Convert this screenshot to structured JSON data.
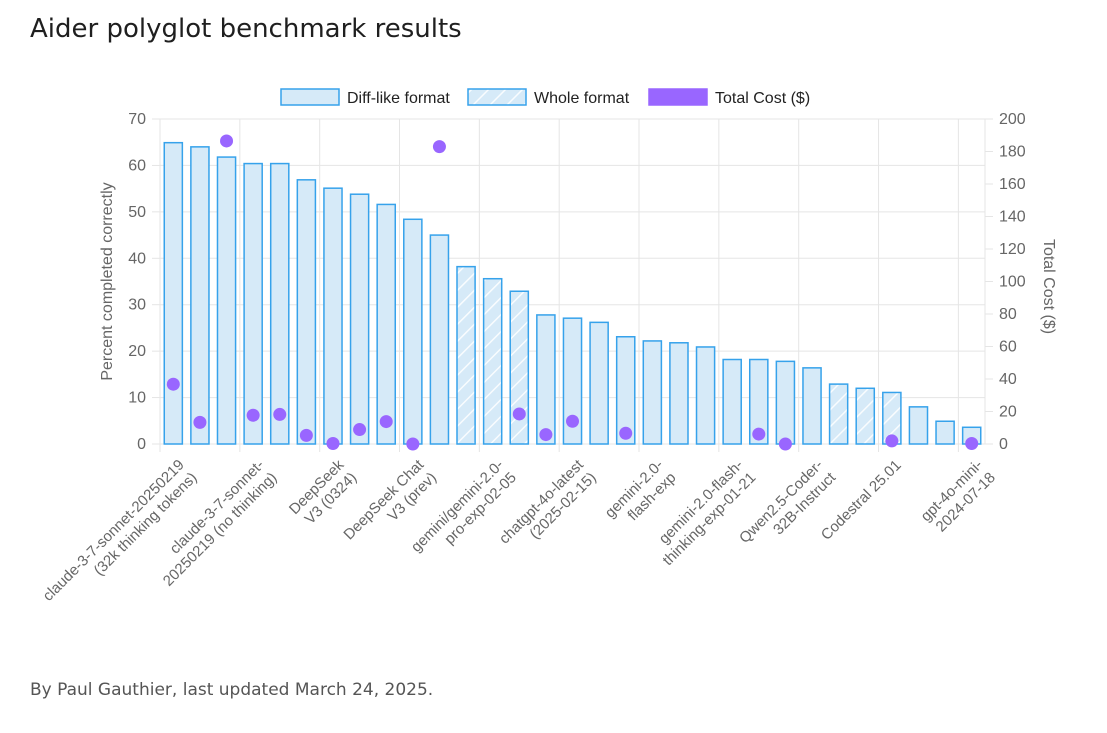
{
  "page": {
    "title": "Aider polyglot benchmark results",
    "byline": "By Paul Gauthier, last updated March 24, 2025."
  },
  "chart_data": {
    "type": "bar",
    "title": "",
    "legend": {
      "placement": "top-center",
      "items": [
        {
          "label": "Diff-like format",
          "kind": "bar"
        },
        {
          "label": "Whole format",
          "kind": "bar-hatched"
        },
        {
          "label": "Total Cost ($)",
          "kind": "point"
        }
      ]
    },
    "y_left": {
      "label": "Percent completed correctly",
      "min": 0,
      "max": 70,
      "step": 10
    },
    "y_right": {
      "label": "Total Cost ($)",
      "min": 0,
      "max": 200,
      "step": 20
    },
    "grid": true,
    "colors": {
      "bar_fill": "#d6eaf8",
      "bar_stroke": "#36a2eb",
      "cost_point": "#9966ff",
      "grid": "#e5e5e5"
    },
    "x_labels_shown": [
      {
        "index": 0,
        "lines": [
          "claude-3-7-sonnet-20250219",
          "(32k thinking tokens)"
        ]
      },
      {
        "index": 3,
        "lines": [
          "claude-3-7-sonnet-",
          "20250219 (no thinking)"
        ]
      },
      {
        "index": 6,
        "lines": [
          "DeepSeek",
          "V3 (0324)"
        ]
      },
      {
        "index": 9,
        "lines": [
          "DeepSeek Chat",
          "V3 (prev)"
        ]
      },
      {
        "index": 12,
        "lines": [
          "gemini/gemini-2.0-",
          "pro-exp-02-05"
        ]
      },
      {
        "index": 15,
        "lines": [
          "chatgpt-4o-latest",
          "(2025-02-15)"
        ]
      },
      {
        "index": 18,
        "lines": [
          "gemini-2.0-",
          "flash-exp"
        ]
      },
      {
        "index": 21,
        "lines": [
          "gemini-2.0-flash-",
          "thinking-exp-01-21"
        ]
      },
      {
        "index": 24,
        "lines": [
          "Qwen2.5-Coder-",
          "32B-Instruct"
        ]
      },
      {
        "index": 27,
        "lines": [
          "Codestral 25.01"
        ]
      },
      {
        "index": 30,
        "lines": [
          "gpt-4o-mini-",
          "2024-07-18"
        ]
      }
    ],
    "bars": [
      {
        "value": 64.9,
        "format": "diff",
        "cost": 36.8
      },
      {
        "value": 64.0,
        "format": "diff",
        "cost": 13.3
      },
      {
        "value": 61.8,
        "format": "diff",
        "cost": 186.5
      },
      {
        "value": 60.4,
        "format": "diff",
        "cost": 17.7
      },
      {
        "value": 60.4,
        "format": "diff",
        "cost": 18.2
      },
      {
        "value": 56.9,
        "format": "diff",
        "cost": 5.3
      },
      {
        "value": 55.1,
        "format": "diff",
        "cost": 0.3
      },
      {
        "value": 53.8,
        "format": "diff",
        "cost": 8.9
      },
      {
        "value": 51.6,
        "format": "diff",
        "cost": 13.8
      },
      {
        "value": 48.4,
        "format": "diff",
        "cost": 0.0
      },
      {
        "value": 45.0,
        "format": "diff",
        "cost": 183.0
      },
      {
        "value": 38.2,
        "format": "whole",
        "cost": null
      },
      {
        "value": 35.6,
        "format": "whole",
        "cost": null
      },
      {
        "value": 32.9,
        "format": "whole",
        "cost": 18.5
      },
      {
        "value": 27.8,
        "format": "diff",
        "cost": 5.8
      },
      {
        "value": 27.1,
        "format": "diff",
        "cost": 14.0
      },
      {
        "value": 26.2,
        "format": "diff",
        "cost": null
      },
      {
        "value": 23.1,
        "format": "diff",
        "cost": 6.6
      },
      {
        "value": 22.2,
        "format": "diff",
        "cost": null
      },
      {
        "value": 21.8,
        "format": "diff",
        "cost": null
      },
      {
        "value": 20.9,
        "format": "diff",
        "cost": null
      },
      {
        "value": 18.2,
        "format": "diff",
        "cost": null
      },
      {
        "value": 18.2,
        "format": "diff",
        "cost": 6.1
      },
      {
        "value": 17.8,
        "format": "diff",
        "cost": 0.0
      },
      {
        "value": 16.4,
        "format": "diff",
        "cost": null
      },
      {
        "value": 12.9,
        "format": "whole",
        "cost": null
      },
      {
        "value": 12.0,
        "format": "whole",
        "cost": null
      },
      {
        "value": 11.1,
        "format": "whole",
        "cost": 1.9
      },
      {
        "value": 8.0,
        "format": "diff",
        "cost": null
      },
      {
        "value": 4.9,
        "format": "diff",
        "cost": null
      },
      {
        "value": 3.6,
        "format": "diff",
        "cost": 0.3
      }
    ]
  }
}
